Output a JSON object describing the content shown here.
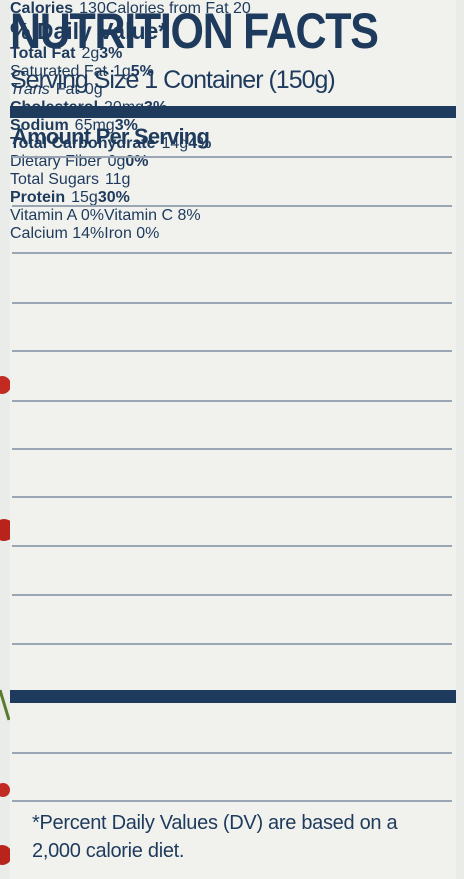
{
  "title": "NUTRITION FACTS",
  "serving": "Serving Size 1 Container (150g)",
  "amount_per_serving": "Amount Per Serving",
  "calories": {
    "label": "Calories",
    "value": "130",
    "from_fat": "Calories from Fat 20"
  },
  "daily_value_header": "% Daily Value*",
  "nutrients": [
    {
      "label": "Total Fat",
      "amount": "2g",
      "dv": "3%"
    },
    {
      "label": "Saturated Fat",
      "amount": "1g",
      "dv": "5%"
    },
    {
      "label_italic": "Trans",
      "label": "Fat",
      "amount": "0g"
    },
    {
      "label": "Cholesterol",
      "amount": "20mg",
      "dv": "3%"
    },
    {
      "label": "Sodium",
      "amount": "65mg",
      "dv": "3%"
    },
    {
      "label": "Total Carbohydrate",
      "amount": "14g",
      "dv": "4%"
    },
    {
      "label": "Dietary Fiber",
      "amount": "0g",
      "dv": "0%"
    },
    {
      "label": "Total Sugars",
      "amount": "11g"
    },
    {
      "label": "Protein",
      "amount": "15g",
      "dv": "30%"
    }
  ],
  "vitamins": [
    [
      "Vitamin A 0%",
      "Vitamin C 8%"
    ],
    [
      "Calcium 14%",
      "Iron 0%"
    ]
  ],
  "footnote": [
    "*Percent Daily Values (DV) are based on a",
    "2,000 calorie diet."
  ]
}
